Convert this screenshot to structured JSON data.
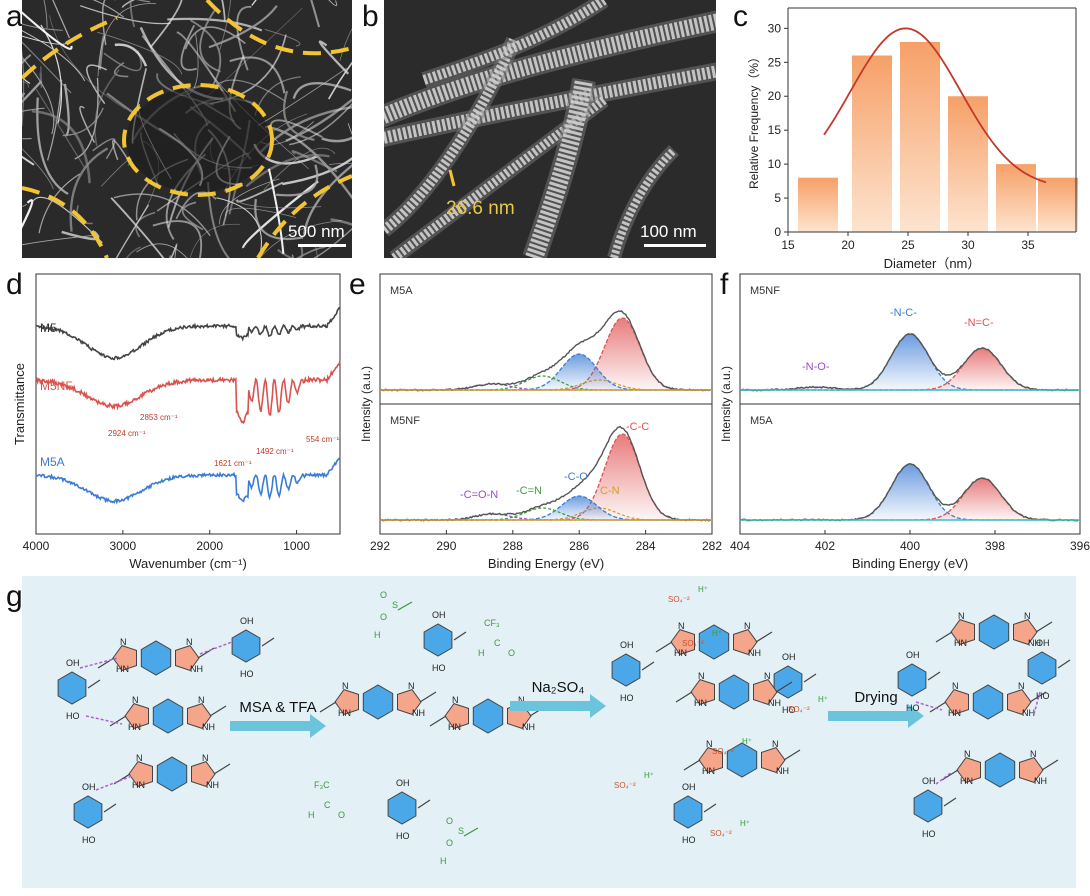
{
  "panels": {
    "a": {
      "label": "a",
      "scalebar": "500 nm"
    },
    "b": {
      "label": "b",
      "scalebar": "100 nm",
      "measurement": "26.6 nm"
    },
    "c": {
      "label": "c"
    },
    "d": {
      "label": "d"
    },
    "e": {
      "label": "e"
    },
    "f": {
      "label": "f"
    },
    "g": {
      "label": "g"
    }
  },
  "chart_data": [
    {
      "panel": "c",
      "type": "bar",
      "xlabel": "Diameter（nm）",
      "ylabel": "Relative Frequency（%）",
      "x": [
        17.5,
        22.5,
        25,
        30,
        35,
        37.5
      ],
      "values": [
        8,
        26,
        28,
        20,
        10,
        8
      ],
      "xlim": [
        15,
        39
      ],
      "ylim": [
        0,
        33
      ],
      "xticks": [
        15,
        20,
        25,
        30,
        35
      ],
      "yticks": [
        0,
        5,
        10,
        15,
        20,
        25,
        30
      ],
      "fit_curve": {
        "type": "gaussian",
        "peak_x": 24.8,
        "peak_y": 30
      },
      "colors": {
        "bar_top": "#f6a068",
        "bar_bottom": "#fde4cf",
        "curve": "#c0392b"
      }
    },
    {
      "panel": "d",
      "type": "line",
      "xlabel": "Wavenumber (cm⁻¹)",
      "ylabel": "Transmittance",
      "xlim": [
        4000,
        500
      ],
      "xticks": [
        4000,
        3000,
        2000,
        1000
      ],
      "series": [
        {
          "name": "M5",
          "color": "#444444"
        },
        {
          "name": "M5NF",
          "color": "#d9534f"
        },
        {
          "name": "M5A",
          "color": "#3a7bd5"
        }
      ],
      "annotations": [
        "2853 cm⁻¹",
        "2924 cm⁻¹",
        "1621 cm⁻¹",
        "1492 cm⁻¹",
        "554 cm⁻¹"
      ]
    },
    {
      "panel": "e",
      "type": "line",
      "xlabel": "Binding Energy (eV)",
      "ylabel": "Intensity (a.u.)",
      "xlim": [
        292,
        282
      ],
      "xticks": [
        292,
        290,
        288,
        286,
        284,
        282
      ],
      "subplots": [
        "M5A",
        "M5NF"
      ],
      "peaks": [
        {
          "name": "-C-C",
          "center": 284.7,
          "color": "#e05050"
        },
        {
          "name": "C-N",
          "center": 285.4,
          "color": "#d4a020"
        },
        {
          "name": "-C-O",
          "center": 286.0,
          "color": "#3a7bd5"
        },
        {
          "name": "-C=N",
          "center": 287.1,
          "color": "#3fa040"
        },
        {
          "name": "-C=O-N",
          "center": 288.6,
          "color": "#9b4dca"
        }
      ]
    },
    {
      "panel": "f",
      "type": "line",
      "xlabel": "Binding Energy (eV)",
      "ylabel": "Intensity (a.u.)",
      "xlim": [
        404,
        396
      ],
      "xticks": [
        404,
        402,
        400,
        398,
        396
      ],
      "subplots": [
        "M5NF",
        "M5A"
      ],
      "peaks": [
        {
          "name": "-N-C-",
          "center": 400.0,
          "color": "#3a7bd5"
        },
        {
          "name": "-N=C-",
          "center": 398.3,
          "color": "#e05050"
        },
        {
          "name": "-N-O-",
          "center": 402.2,
          "color": "#9b4dca"
        }
      ]
    }
  ],
  "scheme": {
    "arrow1_label": "MSA & TFA",
    "arrow2_label": "Na₂SO₄",
    "arrow3_label": "Drying",
    "sulfate": "SO₄⁻²",
    "hplus": "H⁺",
    "cf3": "CF₃",
    "cf3_lower": "F₃C",
    "atoms": {
      "n": "N",
      "nh": "NH",
      "hn": "HN",
      "ho": "HO",
      "oh": "OH",
      "o": "O",
      "h": "H",
      "c": "C",
      "s": "S"
    },
    "colors": {
      "benzene": "#4aa8e8",
      "imidazole": "#f4a58a",
      "hbond": "#b060d0",
      "acid": "#3a9a3a",
      "sulfate": "#d05030",
      "arrow": "#6cc4dc"
    }
  }
}
